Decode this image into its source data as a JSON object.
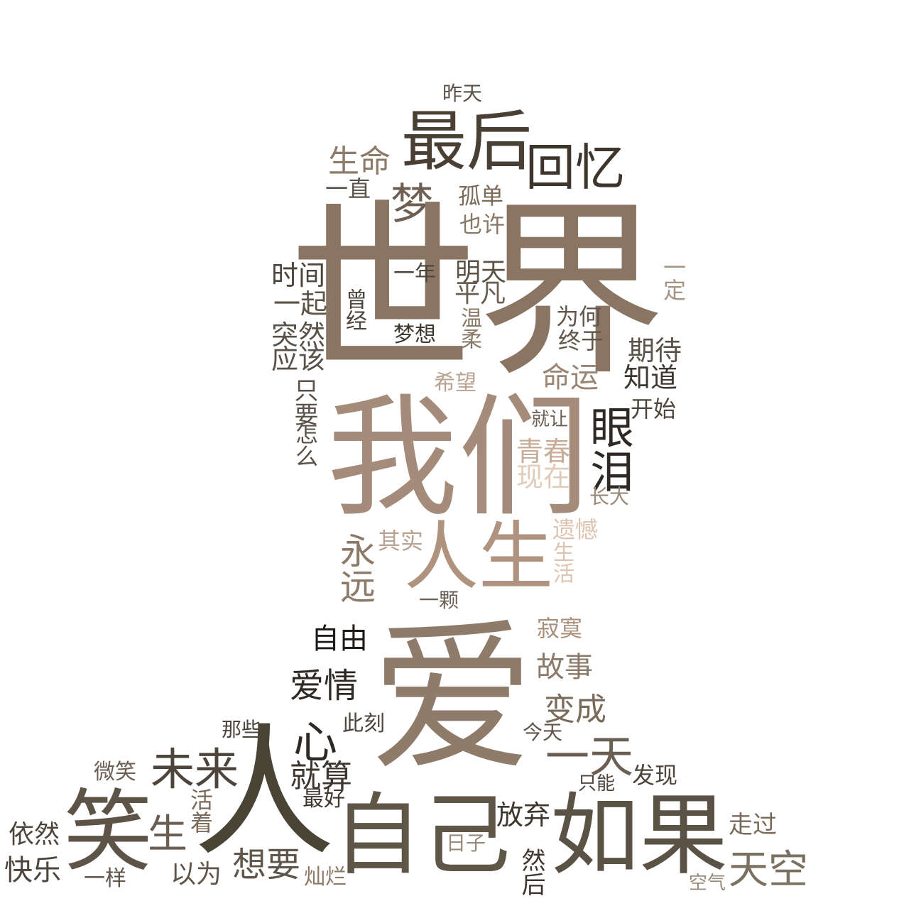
{
  "cloud": {
    "title": "",
    "words": [
      {
        "text": "世界",
        "color": "#8a7563"
      },
      {
        "text": "我们",
        "color": "#a58c7a"
      },
      {
        "text": "爱",
        "color": "#8f7b69"
      },
      {
        "text": "人",
        "color": "#4a4437"
      },
      {
        "text": "自己",
        "color": "#5f5648"
      },
      {
        "text": "如果",
        "color": "#5a5245"
      },
      {
        "text": "笑",
        "color": "#5d5346"
      },
      {
        "text": "人生",
        "color": "#b0937f"
      },
      {
        "text": "最后",
        "color": "#4a3f34"
      },
      {
        "text": "回忆",
        "color": "#3e352c"
      },
      {
        "text": "生命",
        "color": "#8c7b68"
      },
      {
        "text": "梦",
        "color": "#6d5f51"
      },
      {
        "text": "一直",
        "color": "#5a5148"
      },
      {
        "text": "孤单",
        "color": "#7a6a5a"
      },
      {
        "text": "也许",
        "color": "#8a7867"
      },
      {
        "text": "昨天",
        "color": "#5a5148"
      },
      {
        "text": "一定",
        "color": "#a59585"
      },
      {
        "text": "时间",
        "color": "#4d453c"
      },
      {
        "text": "一起",
        "color": "#5c5347"
      },
      {
        "text": "一年",
        "color": "#4d453c"
      },
      {
        "text": "明天",
        "color": "#5c5347"
      },
      {
        "text": "平凡",
        "color": "#6a5f52"
      },
      {
        "text": "曾经",
        "color": "#4d453c"
      },
      {
        "text": "温柔",
        "color": "#8a7866"
      },
      {
        "text": "为何",
        "color": "#5f554a"
      },
      {
        "text": "终于",
        "color": "#5f554a"
      },
      {
        "text": "梦想",
        "color": "#3e372f"
      },
      {
        "text": "突然",
        "color": "#5a5148"
      },
      {
        "text": "应该",
        "color": "#5a5148"
      },
      {
        "text": "期待",
        "color": "#5a5148"
      },
      {
        "text": "知道",
        "color": "#3e372f"
      },
      {
        "text": "命运",
        "color": "#9a8574"
      },
      {
        "text": "希望",
        "color": "#b9a393"
      },
      {
        "text": "眼泪",
        "color": "#2e2925"
      },
      {
        "text": "开始",
        "color": "#4d453c"
      },
      {
        "text": "就让",
        "color": "#6a5f52"
      },
      {
        "text": "怎么",
        "color": "#5a5148"
      },
      {
        "text": "只要",
        "color": "#5a5148"
      },
      {
        "text": "青春",
        "color": "#c7ad99"
      },
      {
        "text": "现在",
        "color": "#e0ccbb"
      },
      {
        "text": "长大",
        "color": "#9a8a7a"
      },
      {
        "text": "遗憾",
        "color": "#dcc4b1"
      },
      {
        "text": "生活",
        "color": "#dcc4b1"
      },
      {
        "text": "永远",
        "color": "#8c7968"
      },
      {
        "text": "其实",
        "color": "#b9a393"
      },
      {
        "text": "一颗",
        "color": "#6a5f52"
      },
      {
        "text": "自由",
        "color": "#1e1b18"
      },
      {
        "text": "寂寞",
        "color": "#a88f7c"
      },
      {
        "text": "故事",
        "color": "#8c7968"
      },
      {
        "text": "爱情",
        "color": "#2e2925"
      },
      {
        "text": "变成",
        "color": "#7a6a5a"
      },
      {
        "text": "心",
        "color": "#2e2925"
      },
      {
        "text": "此刻",
        "color": "#4d453c"
      },
      {
        "text": "那些",
        "color": "#4d453c"
      },
      {
        "text": "今天",
        "color": "#5f554a"
      },
      {
        "text": "一天",
        "color": "#6a5f52"
      },
      {
        "text": "未来",
        "color": "#4d453c"
      },
      {
        "text": "就算",
        "color": "#3e372f"
      },
      {
        "text": "最好",
        "color": "#3e372f"
      },
      {
        "text": "发现",
        "color": "#4d453c"
      },
      {
        "text": "只能",
        "color": "#4d453c"
      },
      {
        "text": "微笑",
        "color": "#6a5f52"
      },
      {
        "text": "生",
        "color": "#6a5f52"
      },
      {
        "text": "活着",
        "color": "#7a6a5a"
      },
      {
        "text": "放弃",
        "color": "#3e372f"
      },
      {
        "text": "日子",
        "color": "#9a8a7a"
      },
      {
        "text": "走过",
        "color": "#7a6a5a"
      },
      {
        "text": "依然",
        "color": "#4d453c"
      },
      {
        "text": "快乐",
        "color": "#4d453c"
      },
      {
        "text": "一样",
        "color": "#5f554a"
      },
      {
        "text": "以为",
        "color": "#5f554a"
      },
      {
        "text": "想要",
        "color": "#5f554a"
      },
      {
        "text": "灿烂",
        "color": "#8c7968"
      },
      {
        "text": "然后",
        "color": "#3e372f"
      },
      {
        "text": "天空",
        "color": "#7a7160"
      },
      {
        "text": "空气",
        "color": "#9a8a7a"
      }
    ]
  }
}
